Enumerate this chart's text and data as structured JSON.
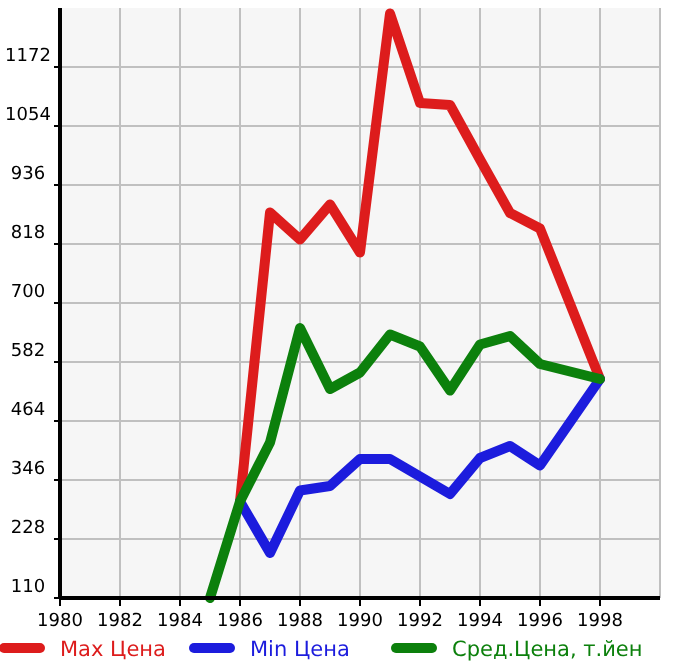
{
  "chart_data": {
    "type": "line",
    "xlim": [
      1980,
      2000
    ],
    "xticks": [
      1980,
      1982,
      1984,
      1986,
      1988,
      1990,
      1992,
      1994,
      1996,
      1998
    ],
    "ylim": [
      110,
      1290
    ],
    "yticks": [
      110,
      228,
      346,
      464,
      582,
      700,
      818,
      936,
      1054,
      1172
    ],
    "grid": true,
    "legend": "bottom",
    "marker": "none",
    "line_style": "solid",
    "series": [
      {
        "name": "Max Цена",
        "color": "#dd1c1c",
        "x": [
          1986,
          1987,
          1988,
          1989,
          1990,
          1991,
          1992,
          1993,
          1994,
          1995,
          1996,
          1998
        ],
        "values": [
          303,
          881,
          827,
          897,
          801,
          1279,
          1100,
          1096,
          987,
          880,
          849,
          548
        ]
      },
      {
        "name": "Min Цена",
        "color": "#1c1cdd",
        "x": [
          1986,
          1987,
          1988,
          1989,
          1990,
          1991,
          1992,
          1993,
          1994,
          1995,
          1996,
          1998
        ],
        "values": [
          303,
          200,
          325,
          334,
          388,
          388,
          353,
          318,
          390,
          414,
          375,
          548
        ]
      },
      {
        "name": "Сред.Цена, т.йен",
        "color": "#0c800c",
        "x": [
          1985,
          1986,
          1987,
          1988,
          1989,
          1990,
          1991,
          1992,
          1993,
          1994,
          1995,
          1996,
          1998
        ],
        "values": [
          110,
          303,
          421,
          650,
          528,
          561,
          637,
          613,
          525,
          617,
          634,
          578,
          548
        ]
      }
    ]
  }
}
